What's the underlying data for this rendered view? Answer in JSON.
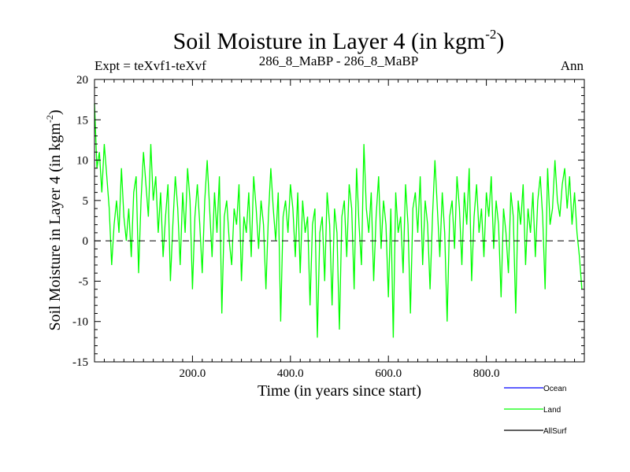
{
  "header": {
    "title": "Soil Moisture in Layer 4 (in kgm",
    "title_sup": "-2",
    "title_close": ")",
    "expt": "Expt = teXvf1-teXvf",
    "subtitle": "286_8_MaBP - 286_8_MaBP",
    "season": "Ann"
  },
  "chart_data": {
    "type": "line",
    "title": "Soil Moisture in Layer 4 (in kgm-2)",
    "xlabel": "Time (in years since start)",
    "ylabel": "Soil Moisture in Layer 4 (in kgm-2)",
    "ylabel_text": "Soil Moisture in Layer 4 (in kgm",
    "ylabel_sup": "-2",
    "ylabel_close": ")",
    "xlim": [
      0,
      1000
    ],
    "ylim": [
      -15,
      20
    ],
    "x_ticks": [
      200,
      400,
      600,
      800
    ],
    "x_tick_labels": [
      "200.0",
      "400.0",
      "600.0",
      "800.0"
    ],
    "y_ticks": [
      -15,
      -10,
      -5,
      0,
      5,
      10,
      15,
      20
    ],
    "y_tick_labels": [
      "-15",
      "-10",
      "-5",
      "0",
      "5",
      "10",
      "15",
      "20"
    ],
    "reference_line": 0,
    "legend": [
      {
        "name": "Ocean",
        "color": "#0000ff"
      },
      {
        "name": "Land",
        "color": "#00ff00"
      },
      {
        "name": "AllSurf",
        "color": "#000000"
      }
    ],
    "series": [
      {
        "name": "Land",
        "color": "#00ff00",
        "x_start": 0,
        "x_step": 5,
        "values": [
          17,
          9,
          11,
          6,
          12,
          8,
          4,
          -3,
          2,
          5,
          1,
          9,
          3,
          0,
          4,
          -2,
          6,
          8,
          -4,
          5,
          11,
          7,
          3,
          12,
          5,
          8,
          1,
          6,
          -2,
          3,
          7,
          -5,
          2,
          8,
          4,
          -3,
          6,
          1,
          9,
          5,
          -6,
          3,
          7,
          2,
          -4,
          5,
          10,
          4,
          -2,
          6,
          1,
          8,
          -9,
          3,
          5,
          0,
          -3,
          4,
          2,
          7,
          -5,
          3,
          1,
          6,
          -2,
          8,
          4,
          -1,
          5,
          2,
          -6,
          3,
          9,
          4,
          0,
          6,
          -10,
          3,
          5,
          1,
          7,
          4,
          -2,
          6,
          -4,
          5,
          1,
          3,
          -8,
          2,
          4,
          -12,
          1,
          3,
          -5,
          6,
          2,
          -8,
          4,
          1,
          -11,
          3,
          5,
          -2,
          7,
          4,
          -6,
          9,
          2,
          -3,
          12,
          4,
          1,
          6,
          -5,
          3,
          8,
          -1,
          5,
          2,
          -7,
          4,
          -12,
          6,
          1,
          3,
          -4,
          7,
          2,
          -9,
          4,
          6,
          1,
          8,
          -3,
          5,
          2,
          -6,
          3,
          10,
          4,
          -2,
          6,
          1,
          -10,
          3,
          5,
          -1,
          8,
          4,
          -3,
          6,
          2,
          9,
          -5,
          3,
          7,
          1,
          4,
          -2,
          6,
          3,
          8,
          -1,
          5,
          2,
          -7,
          4,
          1,
          -4,
          6,
          3,
          -9,
          5,
          2,
          7,
          -3,
          4,
          1,
          6,
          -2,
          5,
          8,
          3,
          -6,
          9,
          2,
          4,
          10,
          5,
          3,
          7,
          9,
          4,
          8,
          2,
          6,
          1,
          -2,
          -6
        ]
      }
    ]
  }
}
